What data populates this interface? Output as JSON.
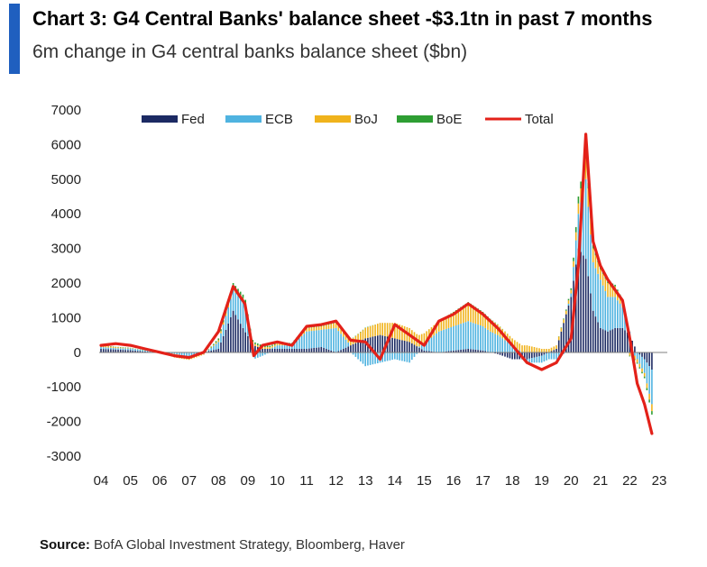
{
  "header": {
    "title": "Chart 3: G4 Central Banks' balance sheet -$3.1tn in past 7 months",
    "subtitle": "6m change in G4 central banks balance sheet ($bn)"
  },
  "footer": {
    "source_label": "Source:",
    "source_text": " BofA Global Investment Strategy, Bloomberg, Haver"
  },
  "colors": {
    "accent": "#1f5fbf",
    "fed": "#1c2a63",
    "ecb": "#4fb3e0",
    "boj": "#f0b31c",
    "boe": "#2e9e33",
    "total": "#e32119"
  },
  "chart_data": {
    "type": "bar",
    "title": "6m change in G4 central banks balance sheet ($bn)",
    "xlabel": "",
    "ylabel": "$bn",
    "ylim": [
      -3000,
      7000
    ],
    "yticks": [
      7000,
      6000,
      5000,
      4000,
      3000,
      2000,
      1000,
      0,
      -1000,
      -2000,
      -3000
    ],
    "x_ticks": [
      "04",
      "05",
      "06",
      "07",
      "08",
      "09",
      "10",
      "11",
      "12",
      "13",
      "14",
      "15",
      "16",
      "17",
      "18",
      "19",
      "20",
      "21",
      "22",
      "23"
    ],
    "legend": [
      "Fed",
      "ECB",
      "BoJ",
      "BoE",
      "Total"
    ],
    "legend_position": "top",
    "x": [
      2004.0,
      2004.5,
      2005.0,
      2005.5,
      2006.0,
      2006.5,
      2007.0,
      2007.5,
      2008.0,
      2008.5,
      2008.9,
      2009.2,
      2009.5,
      2010.0,
      2010.5,
      2011.0,
      2011.5,
      2012.0,
      2012.5,
      2013.0,
      2013.5,
      2014.0,
      2014.5,
      2015.0,
      2015.5,
      2016.0,
      2016.5,
      2017.0,
      2017.5,
      2018.0,
      2018.5,
      2019.0,
      2019.5,
      2020.0,
      2020.25,
      2020.5,
      2020.75,
      2021.0,
      2021.25,
      2021.5,
      2021.75,
      2022.0,
      2022.25,
      2022.5,
      2022.75
    ],
    "series": [
      {
        "name": "Fed",
        "kind": "bar",
        "values": [
          100,
          80,
          60,
          20,
          10,
          0,
          -20,
          0,
          100,
          1200,
          600,
          200,
          100,
          100,
          100,
          100,
          150,
          0,
          200,
          400,
          500,
          400,
          300,
          50,
          0,
          50,
          100,
          50,
          -50,
          -200,
          -200,
          -100,
          100,
          1600,
          3000,
          2700,
          1200,
          700,
          600,
          700,
          700,
          500,
          0,
          -200,
          -500
        ]
      },
      {
        "name": "ECB",
        "kind": "bar",
        "values": [
          50,
          40,
          50,
          30,
          10,
          -50,
          -100,
          -50,
          200,
          600,
          800,
          -200,
          -100,
          100,
          100,
          500,
          500,
          700,
          0,
          -400,
          -300,
          -200,
          -300,
          200,
          600,
          700,
          800,
          700,
          500,
          200,
          -100,
          -200,
          -200,
          100,
          1000,
          2300,
          1400,
          1400,
          1000,
          900,
          600,
          100,
          -200,
          -400,
          -1000
        ]
      },
      {
        "name": "BoJ",
        "kind": "bar",
        "values": [
          50,
          30,
          10,
          -10,
          -10,
          -100,
          -100,
          -20,
          50,
          100,
          100,
          50,
          50,
          50,
          50,
          100,
          100,
          150,
          150,
          300,
          350,
          450,
          400,
          300,
          300,
          400,
          500,
          400,
          300,
          200,
          200,
          100,
          100,
          100,
          300,
          600,
          400,
          300,
          400,
          300,
          200,
          -100,
          -100,
          -100,
          -200
        ]
      },
      {
        "name": "BoE",
        "kind": "bar",
        "values": [
          10,
          10,
          10,
          10,
          0,
          0,
          0,
          0,
          50,
          100,
          100,
          50,
          50,
          30,
          20,
          50,
          50,
          50,
          10,
          10,
          0,
          0,
          0,
          0,
          0,
          20,
          50,
          20,
          10,
          0,
          0,
          0,
          0,
          50,
          200,
          200,
          100,
          50,
          50,
          50,
          30,
          -20,
          -30,
          -50,
          -100
        ]
      },
      {
        "name": "Total",
        "kind": "line",
        "values": [
          200,
          250,
          200,
          100,
          0,
          -100,
          -150,
          0,
          600,
          1900,
          1400,
          -100,
          200,
          300,
          200,
          750,
          800,
          900,
          350,
          300,
          -200,
          800,
          500,
          200,
          900,
          1100,
          1400,
          1100,
          700,
          200,
          -300,
          -500,
          -300,
          400,
          2500,
          6300,
          3200,
          2500,
          2100,
          1800,
          1500,
          400,
          -900,
          -1500,
          -2350
        ]
      }
    ]
  }
}
